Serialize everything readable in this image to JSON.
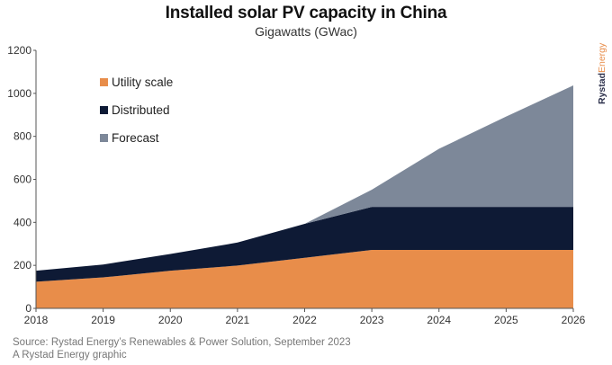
{
  "header": {
    "title": "Installed solar PV capacity in China",
    "subtitle": "Gigawatts (GWac)"
  },
  "brand": {
    "logo_text_primary": "Rystad",
    "logo_text_secondary": "Energy",
    "colors": {
      "primary": "#2b2f4a",
      "secondary": "#e88d4a"
    }
  },
  "footer": {
    "source": "Source: Rystad Energy’s Renewables & Power Solution, September 2023",
    "credit": "A Rystad Energy graphic"
  },
  "chart_data": {
    "type": "area",
    "stacked": true,
    "title": "Installed solar PV capacity in China",
    "subtitle": "Gigawatts (GWac)",
    "xlabel": "",
    "ylabel": "",
    "x": [
      "2018",
      "2019",
      "2020",
      "2021",
      "2022",
      "2023",
      "2024",
      "2025",
      "2026"
    ],
    "ylim": [
      0,
      1200
    ],
    "yticks": [
      0,
      200,
      400,
      600,
      800,
      1000,
      1200
    ],
    "grid": false,
    "legend_position": "top-left",
    "series": [
      {
        "name": "Utility scale",
        "color": "#e88d4a",
        "values": [
          124,
          144,
          175,
          199,
          235,
          272,
          272,
          272,
          272
        ]
      },
      {
        "name": "Distributed",
        "color": "#0e1a35",
        "values": [
          51,
          60,
          78,
          107,
          158,
          200,
          200,
          200,
          200
        ]
      },
      {
        "name": "Forecast",
        "color": "#7d8899",
        "values": [
          0,
          0,
          0,
          0,
          0,
          80,
          270,
          420,
          565
        ]
      }
    ]
  }
}
